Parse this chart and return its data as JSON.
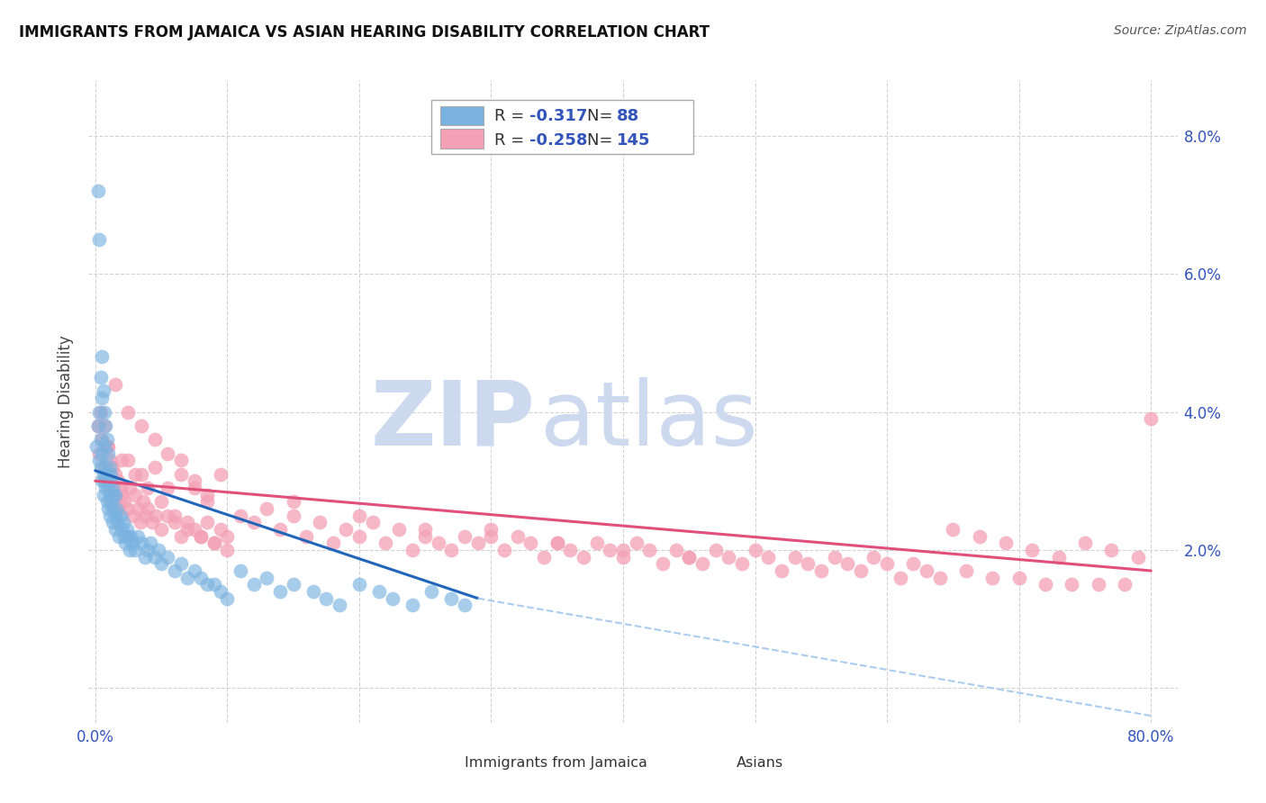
{
  "title": "IMMIGRANTS FROM JAMAICA VS ASIAN HEARING DISABILITY CORRELATION CHART",
  "source": "Source: ZipAtlas.com",
  "ylabel": "Hearing Disability",
  "xlim": [
    -0.005,
    0.82
  ],
  "ylim": [
    -0.005,
    0.088
  ],
  "y_ticks": [
    0.0,
    0.02,
    0.04,
    0.06,
    0.08
  ],
  "y_tick_labels": [
    "",
    "2.0%",
    "4.0%",
    "6.0%",
    "8.0%"
  ],
  "x_ticks": [
    0.0,
    0.1,
    0.2,
    0.3,
    0.4,
    0.5,
    0.6,
    0.7,
    0.8
  ],
  "x_tick_labels": [
    "0.0%",
    "",
    "",
    "",
    "",
    "",
    "",
    "",
    "80.0%"
  ],
  "jamaica_color": "#7ab3e0",
  "asian_color": "#f4a0b5",
  "jamaica_line_color": "#2266bb",
  "asian_line_color": "#e0507a",
  "dashed_line_color": "#aaccee",
  "background_color": "#ffffff",
  "grid_color": "#cccccc",
  "title_color": "#111111",
  "axis_label_color": "#3355bb",
  "watermark_zip_color": "#c8d8ee",
  "watermark_atlas_color": "#c8d8ee",
  "R_jamaica": -0.317,
  "N_jamaica": 88,
  "R_asian": -0.258,
  "N_asian": 145,
  "jamaica_x": [
    0.001,
    0.002,
    0.003,
    0.003,
    0.004,
    0.004,
    0.005,
    0.005,
    0.005,
    0.006,
    0.006,
    0.007,
    0.007,
    0.008,
    0.008,
    0.009,
    0.009,
    0.01,
    0.01,
    0.011,
    0.011,
    0.012,
    0.012,
    0.013,
    0.013,
    0.014,
    0.015,
    0.015,
    0.016,
    0.017,
    0.018,
    0.019,
    0.02,
    0.021,
    0.022,
    0.023,
    0.024,
    0.025,
    0.026,
    0.027,
    0.028,
    0.03,
    0.032,
    0.035,
    0.038,
    0.04,
    0.042,
    0.045,
    0.048,
    0.05,
    0.055,
    0.06,
    0.065,
    0.07,
    0.075,
    0.08,
    0.085,
    0.09,
    0.095,
    0.1,
    0.11,
    0.12,
    0.13,
    0.14,
    0.15,
    0.165,
    0.175,
    0.185,
    0.2,
    0.215,
    0.225,
    0.24,
    0.255,
    0.27,
    0.28,
    0.002,
    0.003,
    0.004,
    0.005,
    0.006,
    0.007,
    0.008,
    0.009,
    0.01,
    0.011,
    0.012,
    0.013,
    0.015
  ],
  "jamaica_y": [
    0.035,
    0.038,
    0.033,
    0.04,
    0.032,
    0.036,
    0.03,
    0.034,
    0.042,
    0.031,
    0.028,
    0.035,
    0.03,
    0.029,
    0.032,
    0.027,
    0.031,
    0.026,
    0.029,
    0.028,
    0.025,
    0.027,
    0.03,
    0.026,
    0.024,
    0.028,
    0.025,
    0.023,
    0.026,
    0.024,
    0.022,
    0.025,
    0.023,
    0.024,
    0.022,
    0.021,
    0.023,
    0.022,
    0.02,
    0.022,
    0.021,
    0.02,
    0.022,
    0.021,
    0.019,
    0.02,
    0.021,
    0.019,
    0.02,
    0.018,
    0.019,
    0.017,
    0.018,
    0.016,
    0.017,
    0.016,
    0.015,
    0.015,
    0.014,
    0.013,
    0.017,
    0.015,
    0.016,
    0.014,
    0.015,
    0.014,
    0.013,
    0.012,
    0.015,
    0.014,
    0.013,
    0.012,
    0.014,
    0.013,
    0.012,
    0.072,
    0.065,
    0.045,
    0.048,
    0.043,
    0.04,
    0.038,
    0.036,
    0.034,
    0.032,
    0.031,
    0.029,
    0.028
  ],
  "asian_x": [
    0.002,
    0.003,
    0.004,
    0.005,
    0.006,
    0.007,
    0.008,
    0.009,
    0.01,
    0.011,
    0.012,
    0.013,
    0.014,
    0.015,
    0.016,
    0.017,
    0.018,
    0.019,
    0.02,
    0.022,
    0.024,
    0.026,
    0.028,
    0.03,
    0.032,
    0.034,
    0.036,
    0.038,
    0.04,
    0.043,
    0.046,
    0.05,
    0.055,
    0.06,
    0.065,
    0.07,
    0.075,
    0.08,
    0.085,
    0.09,
    0.095,
    0.1,
    0.11,
    0.12,
    0.13,
    0.14,
    0.15,
    0.16,
    0.17,
    0.18,
    0.19,
    0.2,
    0.21,
    0.22,
    0.23,
    0.24,
    0.25,
    0.26,
    0.27,
    0.28,
    0.29,
    0.3,
    0.31,
    0.32,
    0.33,
    0.34,
    0.35,
    0.36,
    0.37,
    0.38,
    0.39,
    0.4,
    0.41,
    0.42,
    0.43,
    0.44,
    0.45,
    0.46,
    0.47,
    0.48,
    0.49,
    0.5,
    0.51,
    0.52,
    0.53,
    0.54,
    0.55,
    0.56,
    0.57,
    0.58,
    0.59,
    0.6,
    0.61,
    0.62,
    0.63,
    0.64,
    0.65,
    0.66,
    0.67,
    0.68,
    0.69,
    0.7,
    0.71,
    0.72,
    0.73,
    0.74,
    0.75,
    0.76,
    0.77,
    0.78,
    0.79,
    0.8,
    0.025,
    0.035,
    0.045,
    0.055,
    0.065,
    0.075,
    0.085,
    0.095,
    0.015,
    0.025,
    0.035,
    0.045,
    0.055,
    0.065,
    0.075,
    0.085,
    0.01,
    0.02,
    0.03,
    0.04,
    0.05,
    0.06,
    0.07,
    0.08,
    0.09,
    0.1,
    0.15,
    0.2,
    0.25,
    0.3,
    0.35,
    0.4,
    0.45
  ],
  "asian_y": [
    0.038,
    0.034,
    0.04,
    0.036,
    0.032,
    0.038,
    0.03,
    0.035,
    0.031,
    0.033,
    0.029,
    0.032,
    0.028,
    0.031,
    0.027,
    0.03,
    0.026,
    0.029,
    0.028,
    0.027,
    0.026,
    0.029,
    0.025,
    0.028,
    0.026,
    0.024,
    0.027,
    0.025,
    0.026,
    0.024,
    0.025,
    0.023,
    0.025,
    0.024,
    0.022,
    0.024,
    0.023,
    0.022,
    0.024,
    0.021,
    0.023,
    0.022,
    0.025,
    0.024,
    0.026,
    0.023,
    0.025,
    0.022,
    0.024,
    0.021,
    0.023,
    0.022,
    0.024,
    0.021,
    0.023,
    0.02,
    0.022,
    0.021,
    0.02,
    0.022,
    0.021,
    0.023,
    0.02,
    0.022,
    0.021,
    0.019,
    0.021,
    0.02,
    0.019,
    0.021,
    0.02,
    0.019,
    0.021,
    0.02,
    0.018,
    0.02,
    0.019,
    0.018,
    0.02,
    0.019,
    0.018,
    0.02,
    0.019,
    0.017,
    0.019,
    0.018,
    0.017,
    0.019,
    0.018,
    0.017,
    0.019,
    0.018,
    0.016,
    0.018,
    0.017,
    0.016,
    0.023,
    0.017,
    0.022,
    0.016,
    0.021,
    0.016,
    0.02,
    0.015,
    0.019,
    0.015,
    0.021,
    0.015,
    0.02,
    0.015,
    0.019,
    0.039,
    0.033,
    0.031,
    0.032,
    0.029,
    0.033,
    0.03,
    0.028,
    0.031,
    0.044,
    0.04,
    0.038,
    0.036,
    0.034,
    0.031,
    0.029,
    0.027,
    0.035,
    0.033,
    0.031,
    0.029,
    0.027,
    0.025,
    0.023,
    0.022,
    0.021,
    0.02,
    0.027,
    0.025,
    0.023,
    0.022,
    0.021,
    0.02,
    0.019
  ]
}
